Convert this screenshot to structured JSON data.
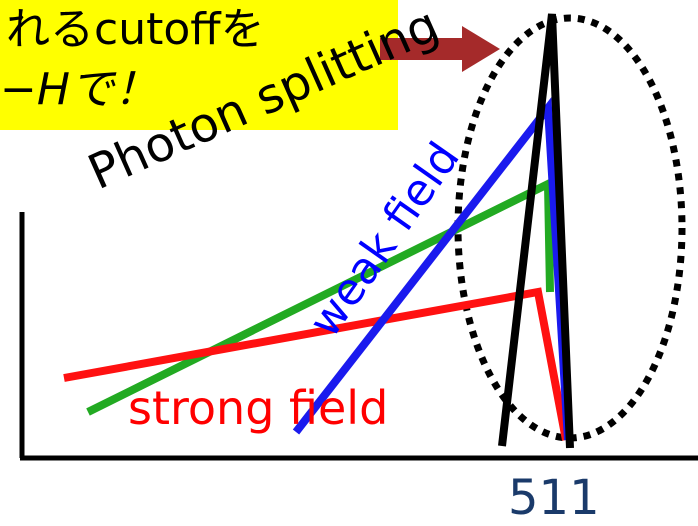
{
  "note_box": {
    "line1": "れるcutoffを",
    "line2": "−Hで！",
    "fill": "#ffff00"
  },
  "labels": {
    "photon_splitting": "Photon splitting",
    "weak_field": "weak field",
    "strong_field": "strong field",
    "axis_tick_511": "511"
  },
  "colors": {
    "arrow": "#a52a2a",
    "green_line": "#22aa22",
    "blue_line": "#1a1aee",
    "red_line": "#ff1111",
    "black_line": "#000000",
    "text_blue": "#0000ff",
    "text_red": "#ff0000"
  }
}
